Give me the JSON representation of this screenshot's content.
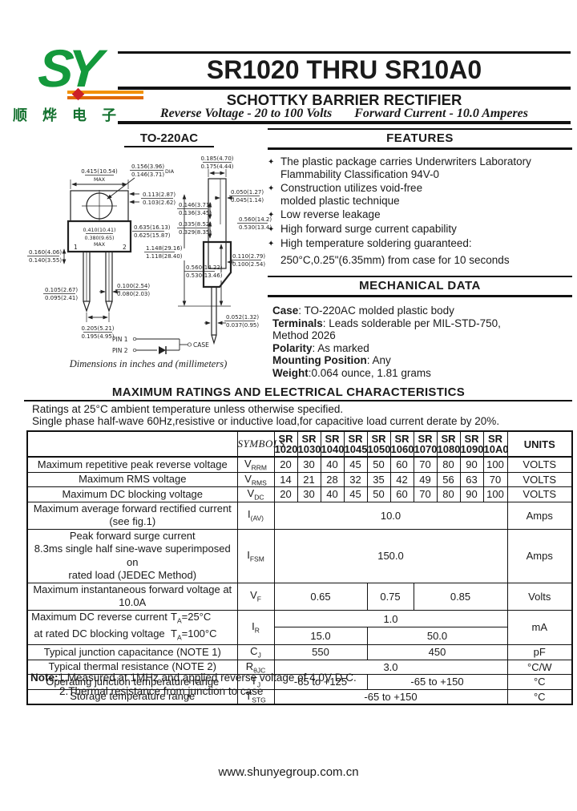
{
  "logo": {
    "monogram": "SY",
    "company_cn": "顺 烨 电 子"
  },
  "header": {
    "part_range": "SR1020 THRU SR10A0",
    "subtitle": "SCHOTTKY BARRIER RECTIFIER",
    "tagline1": "Reverse Voltage - 20 to 100 Volts",
    "tagline2": "Forward Current - 10.0 Amperes"
  },
  "package": {
    "name": "TO-220AC",
    "caption": "Dimensions in inches and (millimeters)",
    "pins": {
      "pin1": "PIN 1",
      "pin2": "PIN 2",
      "case": "CASE",
      "num1": "1",
      "num2": "2"
    },
    "dims": {
      "d1": {
        "a": "0.415(10.54)",
        "b": "MAX"
      },
      "d2": {
        "a": "0.156(3.96)",
        "b": "0.146(3.71)",
        "suffix": "DIA"
      },
      "d3": {
        "a": "0.113(2.87)",
        "b": "0.103(2.62)"
      },
      "d4": {
        "a": "0.410(10.41)",
        "b": "0.380(9.65)",
        "c": "MAX"
      },
      "d5": {
        "a": "0.635(16.13)",
        "b": "0.625(15.87)"
      },
      "d6": {
        "a": "0.160(4.06)",
        "b": "0.140(3.55)"
      },
      "d7": {
        "a": "0.105(2.67)",
        "b": "0.095(2.41)"
      },
      "d8": {
        "a": "0.100(2.54)",
        "b": "0.080(2.03)"
      },
      "d9": {
        "a": "0.205(5.21)",
        "b": "0.195(4.95)"
      },
      "d10": {
        "a": "0.185(4.70)",
        "b": "0.175(4.44)"
      },
      "d11": {
        "a": "0.050(1.27)",
        "b": "0.045(1.14)"
      },
      "d12": {
        "a": "0.146(3.71)",
        "b": "0.136(3.45)"
      },
      "d13": {
        "a": "0.335(8.52)",
        "b": "0.329(8.35)"
      },
      "d14": {
        "a": "0.560(14.22)",
        "b": "0.530(13.46)"
      },
      "d15": {
        "a": "1.148(29.16)",
        "b": "1.118(28.40)"
      },
      "d16": {
        "a": "0.110(2.79)",
        "b": "0.100(2.54)"
      },
      "d17": {
        "a": "0.052(1.32)",
        "b": "0.037(0.95)"
      },
      "d18": {
        "a": "0.560(14.2)",
        "b": "0.530(13.4)"
      }
    }
  },
  "features": {
    "title": "FEATURES",
    "bullet": "✦",
    "items": [
      {
        "lines": [
          "The plastic package carries Underwriters Laboratory",
          "Flammability Classification 94V-0"
        ]
      },
      {
        "lines": [
          "Construction utilizes void-free",
          "molded plastic technique"
        ]
      },
      {
        "lines": [
          "Low reverse leakage"
        ]
      },
      {
        "lines": [
          "High forward surge current capability"
        ]
      },
      {
        "lines": [
          "High temperature soldering guaranteed:",
          "250°C,0.25\"(6.35mm) from case for 10 seconds"
        ],
        "gap": true
      }
    ]
  },
  "mechanical": {
    "title": "MECHANICAL DATA",
    "rows": [
      {
        "label": "Case",
        "text": ": TO-220AC molded plastic body"
      },
      {
        "label": "Terminals",
        "text": ": Leads solderable per MIL-STD-750,"
      },
      {
        "label": "",
        "text": "Method 2026"
      },
      {
        "label": "Polarity",
        "text": ": As marked"
      },
      {
        "label": "Mounting Position",
        "text": ": Any"
      },
      {
        "label": "Weight",
        "text": ":0.064 ounce, 1.81 grams"
      }
    ]
  },
  "ratings": {
    "title": "MAXIMUM RATINGS AND ELECTRICAL CHARACTERISTICS",
    "condition1": "Ratings at 25°C ambient temperature unless otherwise specified.",
    "condition2": "Single phase half-wave 60Hz,resistive or inductive load,for capacitive load current derate by 20%."
  },
  "table": {
    "symbols_header": "SYMBOLS",
    "units_header": "UNITS",
    "parts": [
      {
        "l1": "SR",
        "l2": "1020"
      },
      {
        "l1": "SR",
        "l2": "1030"
      },
      {
        "l1": "SR",
        "l2": "1040"
      },
      {
        "l1": "SR",
        "l2": "1045"
      },
      {
        "l1": "SR",
        "l2": "1050"
      },
      {
        "l1": "SR",
        "l2": "1060"
      },
      {
        "l1": "SR",
        "l2": "1070"
      },
      {
        "l1": "SR",
        "l2": "1080"
      },
      {
        "l1": "SR",
        "l2": "1090"
      },
      {
        "l1": "SR",
        "l2": "10A0"
      }
    ],
    "rows": [
      {
        "param": [
          "Maximum repetitive peak reverse voltage"
        ],
        "sym": {
          "m": "V",
          "s": "RRM"
        },
        "lines": [
          [
            [
              "20",
              1
            ],
            [
              "30",
              1
            ],
            [
              "40",
              1
            ],
            [
              "45",
              1
            ],
            [
              "50",
              1
            ],
            [
              "60",
              1
            ],
            [
              "70",
              1
            ],
            [
              "80",
              1
            ],
            [
              "90",
              1
            ],
            [
              "100",
              1
            ]
          ]
        ],
        "units": "VOLTS"
      },
      {
        "param": [
          "Maximum RMS voltage"
        ],
        "sym": {
          "m": "V",
          "s": "RMS"
        },
        "lines": [
          [
            [
              "14",
              1
            ],
            [
              "21",
              1
            ],
            [
              "28",
              1
            ],
            [
              "32",
              1
            ],
            [
              "35",
              1
            ],
            [
              "42",
              1
            ],
            [
              "49",
              1
            ],
            [
              "56",
              1
            ],
            [
              "63",
              1
            ],
            [
              "70",
              1
            ]
          ]
        ],
        "units": "VOLTS"
      },
      {
        "param": [
          "Maximum DC blocking voltage"
        ],
        "sym": {
          "m": "V",
          "s": "DC"
        },
        "lines": [
          [
            [
              "20",
              1
            ],
            [
              "30",
              1
            ],
            [
              "40",
              1
            ],
            [
              "45",
              1
            ],
            [
              "50",
              1
            ],
            [
              "60",
              1
            ],
            [
              "70",
              1
            ],
            [
              "80",
              1
            ],
            [
              "90",
              1
            ],
            [
              "100",
              1
            ]
          ]
        ],
        "units": "VOLTS"
      },
      {
        "param": [
          "Maximum average forward rectified current",
          "(see fig.1)"
        ],
        "sym": {
          "m": "I",
          "s": "(AV)"
        },
        "lines": [
          [
            [
              "10.0",
              10
            ]
          ]
        ],
        "units": "Amps"
      },
      {
        "param": [
          "Peak forward surge current",
          "8.3ms single half sine-wave superimposed on",
          "rated load (JEDEC Method)"
        ],
        "sym": {
          "m": "I",
          "s": "FSM"
        },
        "lines": [
          [
            [
              "150.0",
              10
            ]
          ]
        ],
        "units": "Amps"
      },
      {
        "param": [
          "Maximum instantaneous forward voltage at 10.0A"
        ],
        "sym": {
          "m": "V",
          "s": "F"
        },
        "lines": [
          [
            [
              "0.65",
              4
            ],
            [
              "0.75",
              2
            ],
            [
              "0.85",
              4
            ]
          ]
        ],
        "units": "Volts",
        "thick": true
      },
      {
        "param": [],
        "special": {
          "l1": "Maximum DC reverse current",
          "l2": "at rated DC blocking voltage",
          "t": "T",
          "tsub": "A",
          "v1": "=25°C",
          "v2": "=100°C"
        },
        "sym": {
          "m": "I",
          "s": "R"
        },
        "lines": [
          [
            [
              "1.0",
              10
            ]
          ],
          [
            [
              "15.0",
              4
            ],
            [
              "50.0",
              6
            ]
          ]
        ],
        "units": "mA"
      },
      {
        "param": [
          "Typical junction capacitance (NOTE 1)"
        ],
        "sym": {
          "m": "C",
          "s": "J"
        },
        "lines": [
          [
            [
              "550",
              4
            ],
            [
              "450",
              6
            ]
          ]
        ],
        "units": "pF"
      },
      {
        "param": [
          "Typical thermal resistance (NOTE 2)"
        ],
        "sym": {
          "m": "R",
          "s": "θJC"
        },
        "lines": [
          [
            [
              "3.0",
              10
            ]
          ]
        ],
        "units": "°C/W"
      },
      {
        "param": [
          "Operating junction temperature range"
        ],
        "sym": {
          "m": "T",
          "s": "J"
        },
        "lines": [
          [
            [
              "-65 to +125",
              4
            ],
            [
              "-65 to +150",
              6
            ]
          ]
        ],
        "units": "°C",
        "thick": true
      },
      {
        "param": [
          "Storage temperature range"
        ],
        "sym": {
          "m": "T",
          "s": "STG"
        },
        "lines": [
          [
            [
              "-65 to +150",
              10
            ]
          ]
        ],
        "units": "°C"
      }
    ]
  },
  "notes": {
    "label": "Note:",
    "line1": "1.Measured at 1MHz and applied reverse voltage of 4.0V D.C.",
    "line2": "2.Thermal resistance from junction to case"
  },
  "footer": {
    "url": "www.shunyegroup.com.cn"
  }
}
